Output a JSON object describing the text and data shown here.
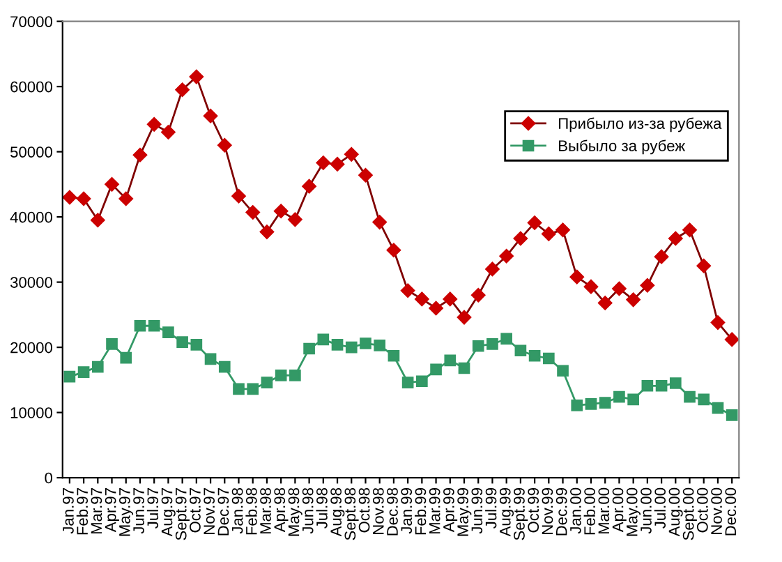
{
  "chart_data": {
    "type": "line",
    "categories": [
      "Jan.97",
      "Feb.97",
      "Mar.97",
      "Apr.97",
      "May.97",
      "Jun.97",
      "Jul.97",
      "Aug.97",
      "Sept.97",
      "Oct.97",
      "Nov.97",
      "Dec.97",
      "Jan.98",
      "Feb.98",
      "Mar.98",
      "Apr.98",
      "May.98",
      "Jun.98",
      "Jul.98",
      "Aug.98",
      "Sept.98",
      "Oct.98",
      "Nov.98",
      "Dec.98",
      "Jan.99",
      "Feb.99",
      "Mar.99",
      "Apr.99",
      "May.99",
      "Jun.99",
      "Jul.99",
      "Aug.99",
      "Sept.99",
      "Oct.99",
      "Nov.99",
      "Dec.99",
      "Jan.00",
      "Feb.00",
      "Mar.00",
      "Apr.00",
      "May.00",
      "Jun.00",
      "Jul.00",
      "Aug.00",
      "Sept.00",
      "Oct.00",
      "Nov.00",
      "Dec.00"
    ],
    "series": [
      {
        "name": "Прибыло из-за рубежа",
        "color": "#800000",
        "marker": "diamond",
        "values": [
          43000,
          42800,
          39500,
          45000,
          42800,
          49500,
          54200,
          53000,
          59500,
          61500,
          55500,
          51000,
          43200,
          40700,
          37700,
          40900,
          39600,
          44700,
          48300,
          48100,
          49600,
          46400,
          39200,
          34900,
          28700,
          27400,
          26000,
          27400,
          24600,
          28000,
          32000,
          34000,
          36700,
          39100,
          37400,
          38000,
          30800,
          29300,
          26800,
          29000,
          27300,
          29500,
          33900,
          36700,
          38000,
          32500,
          23800,
          21200
        ]
      },
      {
        "name": "Выбыло за рубеж",
        "color": "#339966",
        "marker": "square",
        "values": [
          15500,
          16200,
          17000,
          20500,
          18400,
          23300,
          23300,
          22300,
          20800,
          20400,
          18200,
          17000,
          13600,
          13600,
          14600,
          15700,
          15700,
          19800,
          21200,
          20400,
          20000,
          20600,
          20300,
          18700,
          14600,
          14800,
          16600,
          18000,
          16800,
          20200,
          20500,
          21300,
          19500,
          18700,
          18300,
          16400,
          11100,
          11300,
          11500,
          12400,
          12000,
          14100,
          14100,
          14500,
          12400,
          12000,
          10700,
          9600
        ]
      }
    ],
    "ylim": [
      0,
      70000
    ],
    "yticks": [
      0,
      10000,
      20000,
      30000,
      40000,
      50000,
      60000,
      70000
    ],
    "grid": false,
    "legend": "top right"
  }
}
